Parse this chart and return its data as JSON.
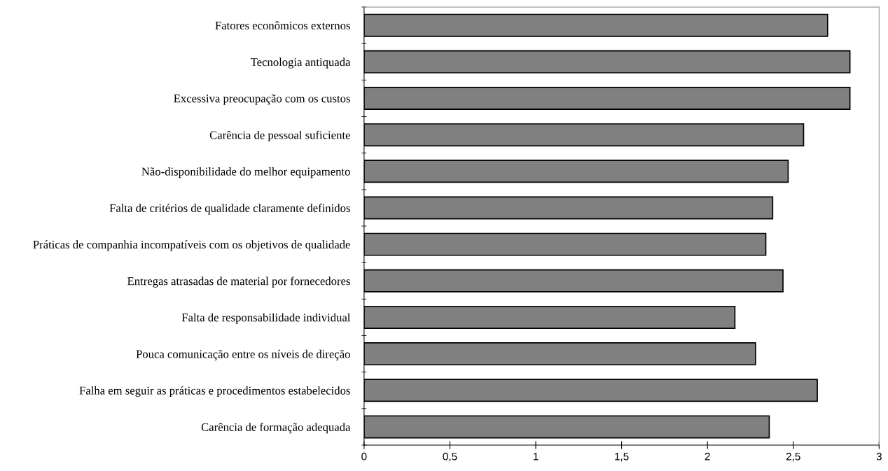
{
  "chart_data": {
    "type": "bar",
    "orientation": "horizontal",
    "categories": [
      "Fatores econômicos externos",
      "Tecnologia antiquada",
      "Excessiva preocupação com os custos",
      "Carência de pessoal suficiente",
      "Não-disponibilidade do melhor equipamento",
      "Falta de critérios de qualidade claramente definidos",
      "Práticas de companhia incompatíveis com os objetivos de qualidade",
      "Entregas atrasadas de material por fornecedores",
      "Falta de responsabilidade individual",
      "Pouca comunicação entre os níveis de direção",
      "Falha em seguir as práticas e procedimentos estabelecidos",
      "Carência de formação adequada"
    ],
    "values": [
      2.7,
      2.83,
      2.83,
      2.56,
      2.47,
      2.38,
      2.34,
      2.44,
      2.16,
      2.28,
      2.64,
      2.36
    ],
    "color": "#808080",
    "xlim": [
      0,
      3
    ],
    "xticks": [
      0,
      {
        "value": 0.5,
        "label": "0,5"
      },
      1,
      {
        "value": 1.5,
        "label": "1,5"
      },
      2,
      {
        "value": 2.5,
        "label": "2,5"
      },
      3
    ],
    "grid": false
  }
}
